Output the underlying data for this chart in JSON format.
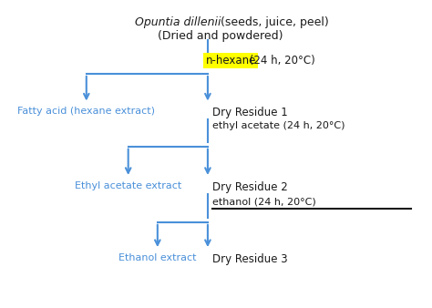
{
  "title_line1": "Opuntia dillenii",
  "title_line1_suffix": " (seeds, juice, peel)",
  "title_line2": "(Dried and powdered)",
  "nhexane_label": "n-hexane",
  "nhexane_condition": " (24 h, 20°C)",
  "dry_residue1": "Dry Residue 1",
  "ethyl_acetate_label": "ethyl acetate (24 h, 20°C)",
  "dry_residue2": "Dry Residue 2",
  "ethanol_label": "ethanol (24 h, 20°C)",
  "dry_residue3": "Dry Residue 3",
  "fatty_acid": "Fatty acid (hexane extract)",
  "ethyl_extract": "Ethyl acetate extract",
  "ethanol_extract": "Ethanol extract",
  "blue_color": "#4a90d9",
  "black_color": "#1a1a1a",
  "yellow_bg": "#ffff00",
  "bg_color": "#ffffff",
  "arrow_color": "#4a90d9"
}
